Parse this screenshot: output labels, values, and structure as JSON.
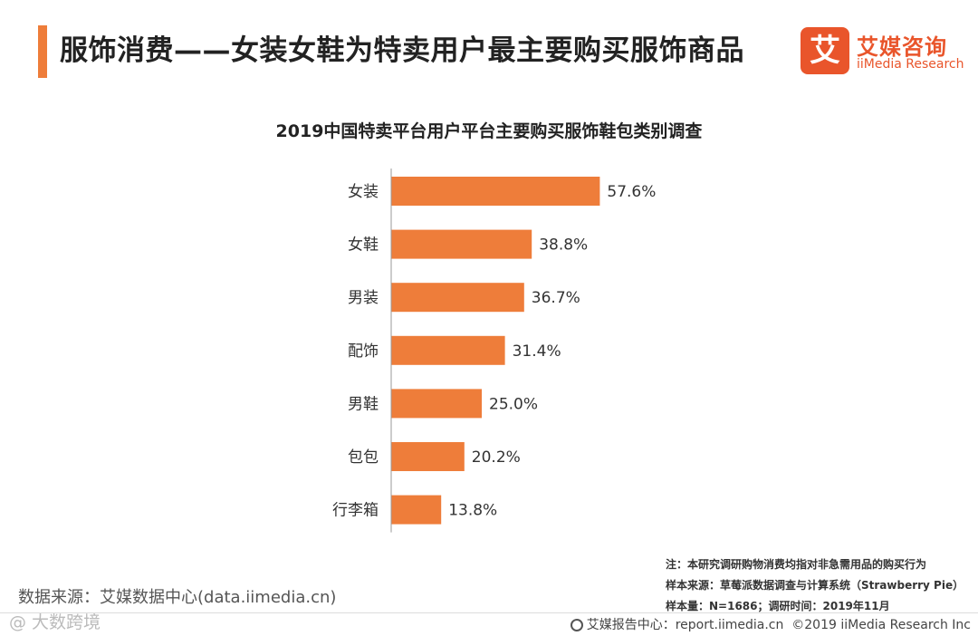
{
  "header": {
    "title": "服饰消费——女装女鞋为特卖用户最主要购买服饰商品",
    "logo": {
      "mark": "艾",
      "name_cn": "艾媒咨询",
      "name_en": "iiMedia Research"
    }
  },
  "colors": {
    "accent": "#ee7d3a",
    "bar": "#ee7d3a",
    "logo": "#e9552b"
  },
  "chart_data": {
    "type": "bar",
    "orientation": "horizontal",
    "title": "2019中国特卖平台用户平台主要购买服饰鞋包类别调查",
    "categories": [
      "女装",
      "女鞋",
      "男装",
      "配饰",
      "男鞋",
      "包包",
      "行李箱"
    ],
    "values": [
      57.6,
      38.8,
      36.7,
      31.4,
      25.0,
      20.2,
      13.8
    ],
    "labels": [
      "57.6%",
      "38.8%",
      "36.7%",
      "31.4%",
      "25.0%",
      "20.2%",
      "13.8%"
    ],
    "xlabel": "",
    "ylabel": "",
    "xlim": [
      0,
      100
    ],
    "grid": false,
    "legend": "none"
  },
  "notes": {
    "note": "注：本研究调研购物消费均指对非急需用品的购买行为",
    "sample_source": "样本来源：草莓派数据调查与计算系统（Strawberry Pie）",
    "sample_size": "样本量：N=1686；调研时间：2019年11月"
  },
  "source": "数据来源：艾媒数据中心(data.iimedia.cn)",
  "watermark": "@ 大数跨境",
  "footer": {
    "center": "艾媒报告中心：report.iimedia.cn",
    "copyright": "©2019  iiMedia Research  Inc"
  }
}
